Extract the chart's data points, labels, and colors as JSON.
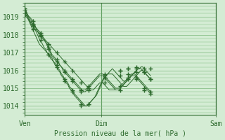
{
  "bg_color": "#d4ecd4",
  "plot_bg_color": "#d4ecd4",
  "line_color": "#2d6a2d",
  "grid_color": "#7ab87a",
  "title": "Pression niveau de la mer( hPa )",
  "ylim": [
    1013.5,
    1019.8
  ],
  "yticks": [
    1014,
    1015,
    1016,
    1017,
    1018,
    1019
  ],
  "xtick_labels": [
    "Ven",
    "Dim",
    "Sam"
  ],
  "xtick_positions": [
    0,
    48,
    120
  ],
  "total_points": 168,
  "series": [
    [
      1019.5,
      1019.3,
      1019.1,
      1018.9,
      1018.8,
      1018.6,
      1018.4,
      1018.2,
      1018.0,
      1017.8,
      1017.6,
      1017.5,
      1017.3,
      1017.2,
      1017.0,
      1016.9,
      1016.7,
      1016.6,
      1016.5,
      1016.3,
      1016.2,
      1016.0,
      1015.9,
      1015.7,
      1015.6,
      1015.4,
      1015.3,
      1015.2,
      1015.0,
      1014.9,
      1014.8,
      1014.6,
      1014.5,
      1014.4,
      1014.3,
      1014.2,
      1014.1,
      1014.0,
      1014.0,
      1014.0,
      1014.1,
      1014.2,
      1014.3,
      1014.4,
      1014.5,
      1014.6,
      1014.8,
      1015.0,
      1015.2,
      1015.4,
      1015.6,
      1015.7,
      1015.8,
      1015.9,
      1016.0,
      1016.1,
      1016.0,
      1015.9,
      1015.8,
      1015.7,
      1015.6,
      1015.5,
      1015.4,
      1015.4,
      1015.4,
      1015.5,
      1015.6,
      1015.7,
      1015.8,
      1015.9,
      1016.0,
      1016.1,
      1016.1,
      1016.2,
      1016.2,
      1016.1,
      1016.0,
      1015.9,
      1015.8,
      1015.7
    ],
    [
      1019.2,
      1019.1,
      1018.9,
      1018.7,
      1018.5,
      1018.3,
      1018.1,
      1017.9,
      1017.7,
      1017.5,
      1017.4,
      1017.3,
      1017.2,
      1017.1,
      1017.0,
      1016.9,
      1016.8,
      1016.7,
      1016.5,
      1016.4,
      1016.3,
      1016.1,
      1016.0,
      1015.8,
      1015.7,
      1015.5,
      1015.4,
      1015.3,
      1015.1,
      1015.0,
      1014.9,
      1014.7,
      1014.6,
      1014.5,
      1014.4,
      1014.3,
      1014.2,
      1014.1,
      1014.0,
      1014.0,
      1014.1,
      1014.2,
      1014.3,
      1014.4,
      1014.5,
      1014.7,
      1014.9,
      1015.1,
      1015.3,
      1015.5,
      1015.6,
      1015.7,
      1015.8,
      1015.8,
      1015.8,
      1015.8,
      1015.7,
      1015.6,
      1015.5,
      1015.4,
      1015.3,
      1015.2,
      1015.1,
      1015.1,
      1015.1,
      1015.2,
      1015.3,
      1015.4,
      1015.5,
      1015.6,
      1015.7,
      1015.8,
      1015.9,
      1016.0,
      1016.0,
      1015.9,
      1015.8,
      1015.7,
      1015.6,
      1015.5
    ],
    [
      1019.4,
      1019.2,
      1019.0,
      1018.8,
      1018.6,
      1018.5,
      1018.4,
      1018.3,
      1018.2,
      1018.1,
      1018.0,
      1017.9,
      1017.8,
      1017.6,
      1017.4,
      1017.2,
      1017.0,
      1016.8,
      1016.7,
      1016.6,
      1016.5,
      1016.4,
      1016.3,
      1016.2,
      1016.1,
      1016.0,
      1015.9,
      1015.8,
      1015.7,
      1015.6,
      1015.5,
      1015.4,
      1015.3,
      1015.2,
      1015.1,
      1015.0,
      1014.9,
      1014.8,
      1014.8,
      1014.9,
      1015.0,
      1015.1,
      1015.2,
      1015.3,
      1015.4,
      1015.5,
      1015.6,
      1015.7,
      1015.7,
      1015.7,
      1015.6,
      1015.5,
      1015.4,
      1015.3,
      1015.2,
      1015.1,
      1015.0,
      1014.9,
      1014.9,
      1014.9,
      1015.0,
      1015.1,
      1015.2,
      1015.3,
      1015.4,
      1015.5,
      1015.6,
      1015.7,
      1015.8,
      1015.9,
      1016.0,
      1016.1,
      1016.1,
      1016.1,
      1016.0,
      1015.9,
      1015.8,
      1015.7,
      1015.6,
      1015.5
    ],
    [
      1019.3,
      1019.2,
      1019.1,
      1019.0,
      1018.9,
      1018.8,
      1018.6,
      1018.4,
      1018.2,
      1018.0,
      1017.9,
      1017.8,
      1017.7,
      1017.6,
      1017.5,
      1017.3,
      1017.1,
      1016.9,
      1016.8,
      1016.7,
      1016.6,
      1016.5,
      1016.3,
      1016.2,
      1016.0,
      1015.9,
      1015.8,
      1015.7,
      1015.6,
      1015.5,
      1015.4,
      1015.3,
      1015.2,
      1015.1,
      1015.0,
      1014.9,
      1014.9,
      1014.9,
      1014.9,
      1015.0,
      1015.1,
      1015.2,
      1015.3,
      1015.4,
      1015.5,
      1015.6,
      1015.7,
      1015.8,
      1015.8,
      1015.8,
      1015.7,
      1015.6,
      1015.5,
      1015.4,
      1015.3,
      1015.2,
      1015.1,
      1015.0,
      1015.0,
      1015.0,
      1015.1,
      1015.2,
      1015.3,
      1015.4,
      1015.5,
      1015.6,
      1015.7,
      1015.8,
      1015.8,
      1015.8,
      1015.7,
      1015.6,
      1015.5,
      1015.4,
      1015.3,
      1015.2,
      1015.1,
      1015.0,
      1014.9,
      1014.8
    ],
    [
      1019.1,
      1019.0,
      1018.9,
      1018.8,
      1018.7,
      1018.6,
      1018.5,
      1018.4,
      1018.3,
      1018.2,
      1018.1,
      1017.9,
      1017.8,
      1017.7,
      1017.6,
      1017.5,
      1017.4,
      1017.3,
      1017.2,
      1017.1,
      1017.0,
      1016.9,
      1016.8,
      1016.7,
      1016.6,
      1016.5,
      1016.4,
      1016.3,
      1016.2,
      1016.1,
      1016.0,
      1015.9,
      1015.8,
      1015.7,
      1015.6,
      1015.5,
      1015.4,
      1015.3,
      1015.2,
      1015.1,
      1015.0,
      1014.9,
      1014.9,
      1014.9,
      1015.0,
      1015.1,
      1015.2,
      1015.3,
      1015.3,
      1015.3,
      1015.2,
      1015.1,
      1015.0,
      1014.9,
      1014.9,
      1014.9,
      1014.9,
      1014.9,
      1014.9,
      1014.9,
      1015.0,
      1015.1,
      1015.2,
      1015.3,
      1015.4,
      1015.5,
      1015.6,
      1015.7,
      1015.7,
      1015.7,
      1015.6,
      1015.5,
      1015.4,
      1015.3,
      1015.2,
      1015.1,
      1015.0,
      1014.9,
      1014.8,
      1014.7
    ]
  ],
  "marker_series": [
    {
      "x": [
        0,
        5,
        10,
        15,
        20,
        25,
        30,
        35,
        40,
        50,
        60,
        65,
        70,
        75,
        79
      ],
      "y": [
        1019.5,
        1018.6,
        1018.0,
        1016.9,
        1016.2,
        1015.4,
        1014.8,
        1014.0,
        1014.1,
        1015.6,
        1016.0,
        1016.1,
        1016.2,
        1016.1,
        1016.1
      ]
    },
    {
      "x": [
        0,
        5,
        10,
        15,
        20,
        25,
        30,
        35,
        40,
        50,
        60,
        65,
        70,
        75,
        79
      ],
      "y": [
        1019.2,
        1018.3,
        1017.7,
        1016.9,
        1016.3,
        1015.5,
        1014.9,
        1014.1,
        1014.1,
        1015.6,
        1015.7,
        1015.8,
        1015.9,
        1015.9,
        1015.5
      ]
    },
    {
      "x": [
        0,
        5,
        10,
        15,
        20,
        25,
        30,
        35,
        40,
        50,
        60,
        65,
        70,
        75,
        79
      ],
      "y": [
        1019.4,
        1018.5,
        1018.0,
        1017.2,
        1016.5,
        1016.0,
        1015.5,
        1014.8,
        1014.9,
        1015.7,
        1016.0,
        1016.1,
        1016.1,
        1015.9,
        1015.5
      ]
    },
    {
      "x": [
        0,
        5,
        10,
        15,
        20,
        25,
        30,
        35,
        40,
        50,
        60,
        65,
        70,
        75,
        79
      ],
      "y": [
        1019.3,
        1018.8,
        1017.9,
        1017.3,
        1016.6,
        1015.9,
        1015.4,
        1014.9,
        1015.1,
        1015.8,
        1015.1,
        1015.6,
        1015.5,
        1015.0,
        1014.8
      ]
    },
    {
      "x": [
        0,
        5,
        10,
        15,
        20,
        25,
        30,
        35,
        40,
        50,
        60,
        65,
        70,
        75,
        79
      ],
      "y": [
        1019.1,
        1018.6,
        1018.1,
        1017.5,
        1017.0,
        1016.5,
        1016.0,
        1015.3,
        1015.0,
        1015.3,
        1014.9,
        1015.5,
        1015.6,
        1014.9,
        1014.7
      ]
    }
  ],
  "vline_positions": [
    0,
    48,
    120
  ],
  "figsize": [
    3.2,
    2.0
  ],
  "dpi": 100
}
